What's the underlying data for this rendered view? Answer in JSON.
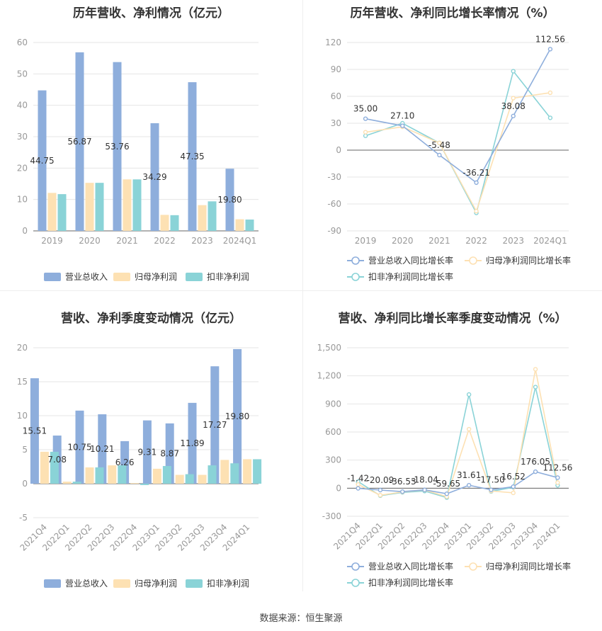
{
  "footer": "数据来源：恒生聚源",
  "colors": {
    "revenue": "#8eaedc",
    "net_profit": "#fde1b3",
    "deducted_profit": "#8ad3d7"
  },
  "chart_data": [
    {
      "type": "bar",
      "title": "历年营收、净利情况（亿元）",
      "categories": [
        "2019",
        "2020",
        "2021",
        "2022",
        "2023",
        "2024Q1"
      ],
      "series": [
        {
          "name": "营业总收入",
          "values": [
            44.75,
            56.87,
            53.76,
            34.29,
            47.35,
            19.8
          ],
          "labels": [
            "44.75",
            "56.87",
            "53.76",
            "34.29",
            "47.35",
            "19.80"
          ]
        },
        {
          "name": "归母净利润",
          "values": [
            12.1,
            15.3,
            16.4,
            5.1,
            8.2,
            3.7
          ]
        },
        {
          "name": "扣非净利润",
          "values": [
            11.7,
            15.3,
            16.4,
            5.0,
            9.4,
            3.6
          ]
        }
      ],
      "ylim": [
        0,
        60
      ],
      "yticks": [
        "0",
        "10",
        "20",
        "30",
        "40",
        "50",
        "60"
      ],
      "grid": true,
      "legend": "bottom"
    },
    {
      "type": "line",
      "title": "历年营收、净利同比增长率情况（%）",
      "categories": [
        "2019",
        "2020",
        "2021",
        "2022",
        "2023",
        "2024Q1"
      ],
      "series": [
        {
          "name": "营业总收入同比增长率",
          "values": [
            35.0,
            27.1,
            -5.48,
            -36.21,
            38.08,
            112.56
          ],
          "labels": [
            "35.00",
            "27.10",
            "-5.48",
            "-36.21",
            "38.08",
            "112.56"
          ]
        },
        {
          "name": "归母净利润同比增长率",
          "values": [
            20,
            26,
            8,
            -68,
            58,
            64
          ]
        },
        {
          "name": "扣非净利润同比增长率",
          "values": [
            16,
            30,
            8,
            -70,
            88,
            36
          ]
        }
      ],
      "ylim": [
        -90,
        120
      ],
      "yticks": [
        "-90",
        "-60",
        "-30",
        "0",
        "30",
        "60",
        "90",
        "120"
      ],
      "grid": true,
      "legend": "bottom"
    },
    {
      "type": "bar",
      "title": "营收、净利季度变动情况（亿元）",
      "categories": [
        "2021Q4",
        "2022Q1",
        "2022Q2",
        "2022Q3",
        "2022Q4",
        "2023Q1",
        "2023Q2",
        "2023Q3",
        "2023Q4",
        "2024Q1"
      ],
      "series": [
        {
          "name": "营业总收入",
          "values": [
            15.51,
            7.08,
            10.75,
            10.21,
            6.26,
            9.31,
            8.87,
            11.89,
            17.27,
            19.8
          ],
          "labels": [
            "15.51",
            "7.08",
            "10.75",
            "10.21",
            "6.26",
            "9.31",
            "8.87",
            "11.89",
            "17.27",
            "19.80"
          ]
        },
        {
          "name": "归母净利润",
          "values": [
            4.7,
            0.3,
            2.4,
            2.7,
            0.1,
            2.2,
            1.3,
            1.3,
            3.5,
            3.6
          ]
        },
        {
          "name": "扣非净利润",
          "values": [
            4.7,
            0.3,
            2.4,
            2.7,
            -0.2,
            2.6,
            1.4,
            2.7,
            3.0,
            3.6
          ]
        }
      ],
      "ylim": [
        -5,
        20
      ],
      "yticks": [
        "-5",
        "0",
        "5",
        "10",
        "15",
        "20"
      ],
      "grid": true,
      "legend": "bottom"
    },
    {
      "type": "line",
      "title": "营收、净利同比增长率季度变动情况（%）",
      "categories": [
        "2021Q4",
        "2022Q1",
        "2022Q2",
        "2022Q3",
        "2022Q4",
        "2023Q1",
        "2023Q2",
        "2023Q3",
        "2023Q4",
        "2024Q1"
      ],
      "series": [
        {
          "name": "营业总收入同比增长率",
          "values": [
            -1.42,
            -20.09,
            -36.53,
            -18.04,
            -59.65,
            31.61,
            -17.5,
            16.52,
            176.05,
            112.56
          ],
          "labels": [
            "-1.42",
            "-20.09",
            "-36.53",
            "-18.04",
            "-59.65",
            "31.61",
            "-17.50",
            "16.52",
            "176.05",
            "112.56"
          ]
        },
        {
          "name": "归母净利润同比增长率",
          "values": [
            40,
            -75,
            -40,
            -20,
            -90,
            630,
            -30,
            -50,
            1270,
            60
          ]
        },
        {
          "name": "扣非净利润同比增长率",
          "values": [
            70,
            -80,
            -45,
            -30,
            -100,
            1000,
            -35,
            10,
            1080,
            30
          ]
        }
      ],
      "ylim": [
        -300,
        1500
      ],
      "yticks": [
        "-300",
        "0",
        "300",
        "600",
        "900",
        "1,200",
        "1,500"
      ],
      "grid": true,
      "legend": "bottom"
    }
  ]
}
